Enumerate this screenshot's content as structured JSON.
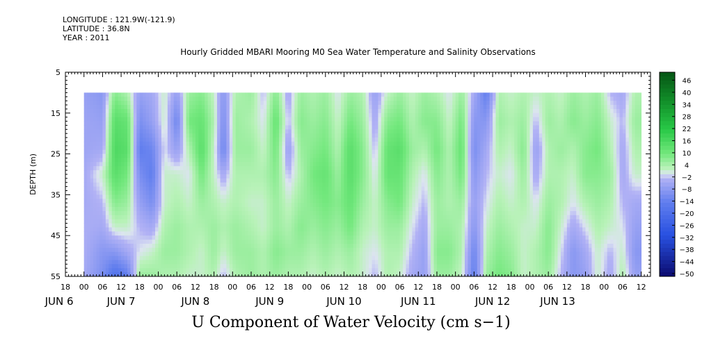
{
  "header": {
    "longitude": "LONGITUDE : 121.9W(-121.9)",
    "latitude": "LATITUDE : 36.8N",
    "year": "YEAR : 2011"
  },
  "chart_data": {
    "type": "heatmap",
    "title": "Hourly Gridded MBARI Mooring M0 Sea Water Temperature and Salinity Observations",
    "variable_title": "U Component of Water Velocity (cm s−1)",
    "ylabel": "DEPTH (m)",
    "ylim": [
      5,
      55
    ],
    "y_inverted": true,
    "y_ticks": [
      5,
      15,
      25,
      35,
      45,
      55
    ],
    "data_depth_range": [
      10,
      55
    ],
    "x_hour_range": [
      -6,
      183
    ],
    "data_hour_range": [
      0,
      180
    ],
    "x_hour_ticks": [
      {
        "hour": -6,
        "label": "18"
      },
      {
        "hour": 0,
        "label": "00"
      },
      {
        "hour": 6,
        "label": "06"
      },
      {
        "hour": 12,
        "label": "12"
      },
      {
        "hour": 18,
        "label": "18"
      },
      {
        "hour": 24,
        "label": "00"
      },
      {
        "hour": 30,
        "label": "06"
      },
      {
        "hour": 36,
        "label": "12"
      },
      {
        "hour": 42,
        "label": "18"
      },
      {
        "hour": 48,
        "label": "00"
      },
      {
        "hour": 54,
        "label": "06"
      },
      {
        "hour": 60,
        "label": "12"
      },
      {
        "hour": 66,
        "label": "18"
      },
      {
        "hour": 72,
        "label": "00"
      },
      {
        "hour": 78,
        "label": "06"
      },
      {
        "hour": 84,
        "label": "12"
      },
      {
        "hour": 90,
        "label": "18"
      },
      {
        "hour": 96,
        "label": "00"
      },
      {
        "hour": 102,
        "label": "06"
      },
      {
        "hour": 108,
        "label": "12"
      },
      {
        "hour": 114,
        "label": "18"
      },
      {
        "hour": 120,
        "label": "00"
      },
      {
        "hour": 126,
        "label": "06"
      },
      {
        "hour": 132,
        "label": "12"
      },
      {
        "hour": 138,
        "label": "18"
      },
      {
        "hour": 144,
        "label": "00"
      },
      {
        "hour": 150,
        "label": "06"
      },
      {
        "hour": 156,
        "label": "12"
      },
      {
        "hour": 162,
        "label": "18"
      },
      {
        "hour": 168,
        "label": "00"
      },
      {
        "hour": 174,
        "label": "06"
      },
      {
        "hour": 180,
        "label": "12"
      }
    ],
    "x_date_labels": [
      {
        "hour": -8,
        "label": "JUN  6"
      },
      {
        "hour": 12,
        "label": "JUN  7"
      },
      {
        "hour": 36,
        "label": "JUN  8"
      },
      {
        "hour": 60,
        "label": "JUN  9"
      },
      {
        "hour": 84,
        "label": "JUN 10"
      },
      {
        "hour": 108,
        "label": "JUN 11"
      },
      {
        "hour": 132,
        "label": "JUN 12"
      },
      {
        "hour": 153,
        "label": "JUN 13"
      }
    ],
    "colorbar": {
      "min": -50,
      "max": 50,
      "labels": [
        "46",
        "40",
        "34",
        "28",
        "22",
        "16",
        "10",
        "4",
        "−2",
        "−8",
        "−14",
        "−20",
        "−26",
        "−32",
        "−38",
        "−44",
        "−50"
      ]
    },
    "columns": [
      {
        "hour": 0,
        "values": [
          -6,
          -5,
          -5,
          -4,
          -4,
          -3,
          -3,
          -4
        ]
      },
      {
        "hour": 6,
        "values": [
          -8,
          -6,
          -4,
          2,
          -2,
          -4,
          -8,
          -10
        ]
      },
      {
        "hour": 10,
        "values": [
          8,
          14,
          16,
          14,
          8,
          2,
          -8,
          -18
        ]
      },
      {
        "hour": 14,
        "values": [
          4,
          12,
          14,
          10,
          6,
          2,
          -4,
          -14
        ]
      },
      {
        "hour": 18,
        "values": [
          -6,
          -10,
          -14,
          -10,
          -6,
          -2,
          0,
          6
        ]
      },
      {
        "hour": 22,
        "values": [
          -4,
          -6,
          -12,
          -14,
          -10,
          -4,
          2,
          6
        ]
      },
      {
        "hour": 26,
        "values": [
          2,
          2,
          0,
          2,
          2,
          4,
          6,
          4
        ]
      },
      {
        "hour": 30,
        "values": [
          -6,
          -12,
          -6,
          2,
          4,
          6,
          6,
          4
        ]
      },
      {
        "hour": 34,
        "values": [
          6,
          10,
          4,
          0,
          2,
          4,
          4,
          2
        ]
      },
      {
        "hour": 38,
        "values": [
          8,
          12,
          14,
          10,
          6,
          4,
          2,
          2
        ]
      },
      {
        "hour": 42,
        "values": [
          2,
          4,
          2,
          2,
          4,
          6,
          6,
          4
        ]
      },
      {
        "hour": 45,
        "values": [
          -8,
          -10,
          -12,
          -4,
          2,
          4,
          2,
          -2
        ]
      },
      {
        "hour": 49,
        "values": [
          4,
          6,
          6,
          4,
          4,
          6,
          6,
          4
        ]
      },
      {
        "hour": 54,
        "values": [
          6,
          4,
          6,
          4,
          2,
          4,
          6,
          6
        ]
      },
      {
        "hour": 58,
        "values": [
          -2,
          0,
          2,
          4,
          2,
          2,
          4,
          4
        ]
      },
      {
        "hour": 62,
        "values": [
          8,
          12,
          10,
          8,
          6,
          6,
          8,
          6
        ]
      },
      {
        "hour": 66,
        "values": [
          -4,
          -2,
          -6,
          -2,
          2,
          4,
          6,
          4
        ]
      },
      {
        "hour": 70,
        "values": [
          6,
          8,
          6,
          4,
          6,
          8,
          6,
          4
        ]
      },
      {
        "hour": 74,
        "values": [
          4,
          6,
          8,
          10,
          8,
          6,
          4,
          2
        ]
      },
      {
        "hour": 78,
        "values": [
          6,
          8,
          10,
          12,
          10,
          8,
          6,
          4
        ]
      },
      {
        "hour": 82,
        "values": [
          0,
          2,
          4,
          6,
          8,
          6,
          4,
          2
        ]
      },
      {
        "hour": 86,
        "values": [
          6,
          10,
          14,
          14,
          12,
          10,
          6,
          4
        ]
      },
      {
        "hour": 90,
        "values": [
          4,
          6,
          8,
          8,
          6,
          4,
          2,
          2
        ]
      },
      {
        "hour": 94,
        "values": [
          -6,
          -4,
          -2,
          0,
          2,
          2,
          0,
          -2
        ]
      },
      {
        "hour": 98,
        "values": [
          2,
          8,
          12,
          12,
          8,
          6,
          4,
          4
        ]
      },
      {
        "hour": 102,
        "values": [
          6,
          10,
          14,
          12,
          10,
          6,
          4,
          2
        ]
      },
      {
        "hour": 106,
        "values": [
          2,
          4,
          6,
          4,
          2,
          0,
          -2,
          -4
        ]
      },
      {
        "hour": 110,
        "values": [
          6,
          8,
          4,
          0,
          -2,
          -4,
          -6,
          -6
        ]
      },
      {
        "hour": 114,
        "values": [
          4,
          8,
          10,
          8,
          6,
          6,
          8,
          6
        ]
      },
      {
        "hour": 118,
        "values": [
          0,
          2,
          4,
          4,
          4,
          6,
          8,
          6
        ]
      },
      {
        "hour": 122,
        "values": [
          6,
          10,
          12,
          10,
          6,
          4,
          4,
          2
        ]
      },
      {
        "hour": 126,
        "values": [
          -4,
          -8,
          -10,
          -8,
          -6,
          -8,
          -12,
          -14
        ]
      },
      {
        "hour": 130,
        "values": [
          -14,
          -8,
          -4,
          -2,
          0,
          2,
          4,
          6
        ]
      },
      {
        "hour": 134,
        "values": [
          4,
          6,
          4,
          2,
          4,
          6,
          8,
          10
        ]
      },
      {
        "hour": 138,
        "values": [
          2,
          4,
          2,
          0,
          2,
          4,
          6,
          8
        ]
      },
      {
        "hour": 142,
        "values": [
          4,
          6,
          8,
          6,
          4,
          2,
          2,
          2
        ]
      },
      {
        "hour": 146,
        "values": [
          2,
          -2,
          -6,
          -4,
          0,
          2,
          4,
          4
        ]
      },
      {
        "hour": 150,
        "values": [
          4,
          6,
          4,
          4,
          6,
          8,
          8,
          6
        ]
      },
      {
        "hour": 154,
        "values": [
          2,
          4,
          6,
          4,
          4,
          2,
          0,
          -2
        ]
      },
      {
        "hour": 158,
        "values": [
          6,
          8,
          4,
          2,
          0,
          -4,
          -8,
          -8
        ]
      },
      {
        "hour": 162,
        "values": [
          4,
          6,
          8,
          8,
          4,
          0,
          -4,
          -6
        ]
      },
      {
        "hour": 166,
        "values": [
          6,
          8,
          10,
          8,
          6,
          4,
          2,
          2
        ]
      },
      {
        "hour": 170,
        "values": [
          -2,
          2,
          4,
          6,
          4,
          2,
          -2,
          -4
        ]
      },
      {
        "hour": 174,
        "values": [
          -4,
          -2,
          -4,
          -4,
          -2,
          0,
          2,
          4
        ]
      },
      {
        "hour": 178,
        "values": [
          4,
          6,
          4,
          2,
          -4,
          -6,
          -8,
          -6
        ]
      }
    ],
    "column_depths": [
      10,
      17,
      24,
      30,
      37,
      43,
      49,
      55
    ]
  }
}
